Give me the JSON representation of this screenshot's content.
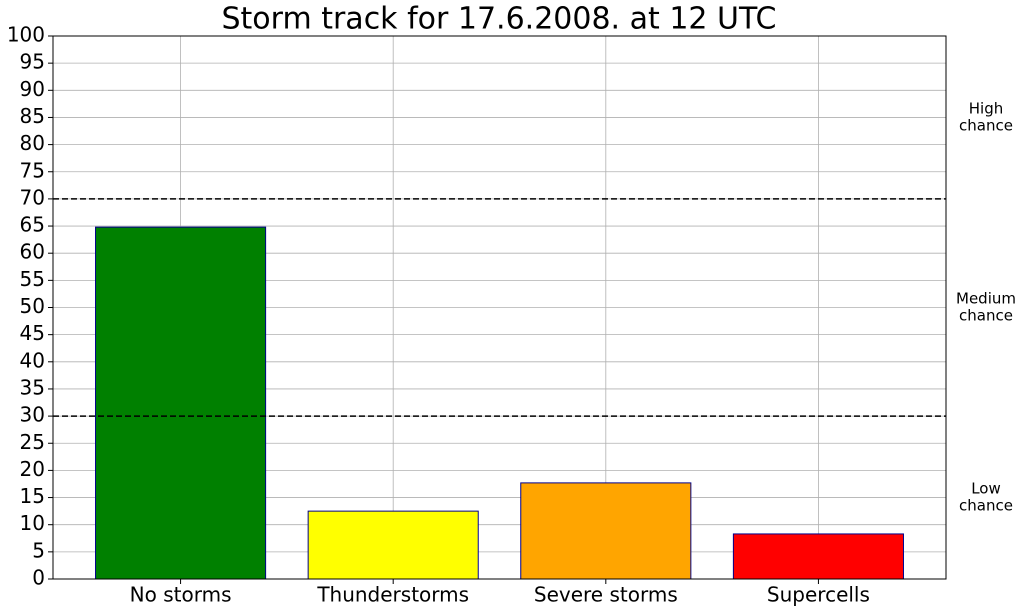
{
  "chart_data": {
    "type": "bar",
    "title": "Storm track for 17.6.2008. at 12 UTC",
    "categories": [
      "No storms",
      "Thunderstorms",
      "Severe storms",
      "Supercells"
    ],
    "values": [
      64.8,
      12.5,
      17.7,
      8.3
    ],
    "colors": [
      "#008000",
      "#ffff00",
      "#ffa500",
      "#ff0000"
    ],
    "edge_color": "#00008b",
    "ylim": [
      0,
      100
    ],
    "yticks": [
      0,
      5,
      10,
      15,
      20,
      25,
      30,
      35,
      40,
      45,
      50,
      55,
      60,
      65,
      70,
      75,
      80,
      85,
      90,
      95,
      100
    ],
    "grid": true,
    "hlines": [
      70,
      30
    ],
    "zone_labels": [
      [
        "High",
        "chance"
      ],
      [
        "Medium",
        "chance"
      ],
      [
        "Low",
        "chance"
      ]
    ]
  }
}
